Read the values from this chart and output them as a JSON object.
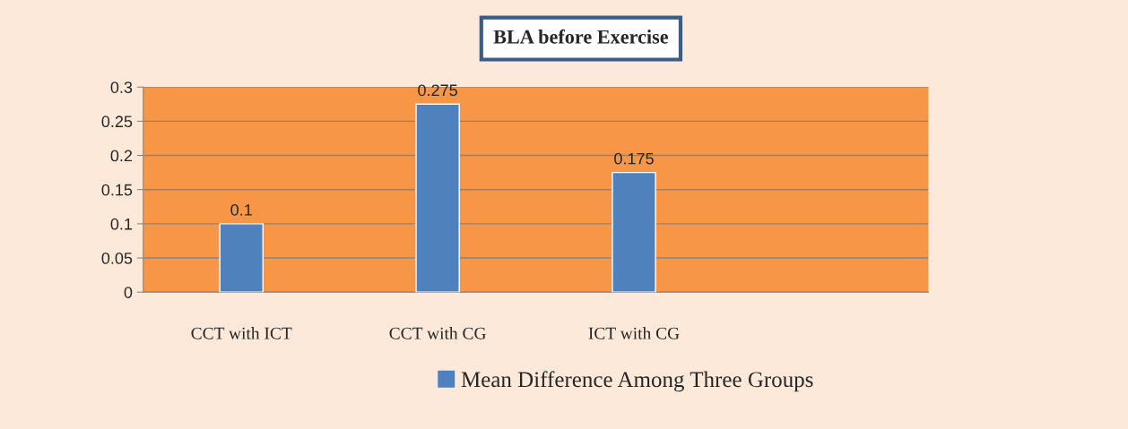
{
  "chart_data": {
    "type": "bar",
    "title": "BLA before Exercise",
    "categories": [
      "CCT with ICT",
      "CCT with CG",
      "ICT with CG",
      null
    ],
    "series": [
      {
        "name": "Mean Difference Among Three Groups",
        "color": "#4f81bd",
        "values": [
          0.1,
          0.275,
          0.175,
          null
        ]
      }
    ],
    "ylim": [
      0,
      0.3
    ],
    "yticks": [
      0,
      0.05,
      0.1,
      0.15,
      0.2,
      0.25,
      0.3
    ],
    "value_labels": [
      "0.1",
      "0.275",
      "0.175",
      null
    ],
    "grid": "y",
    "legend": "bottom"
  }
}
